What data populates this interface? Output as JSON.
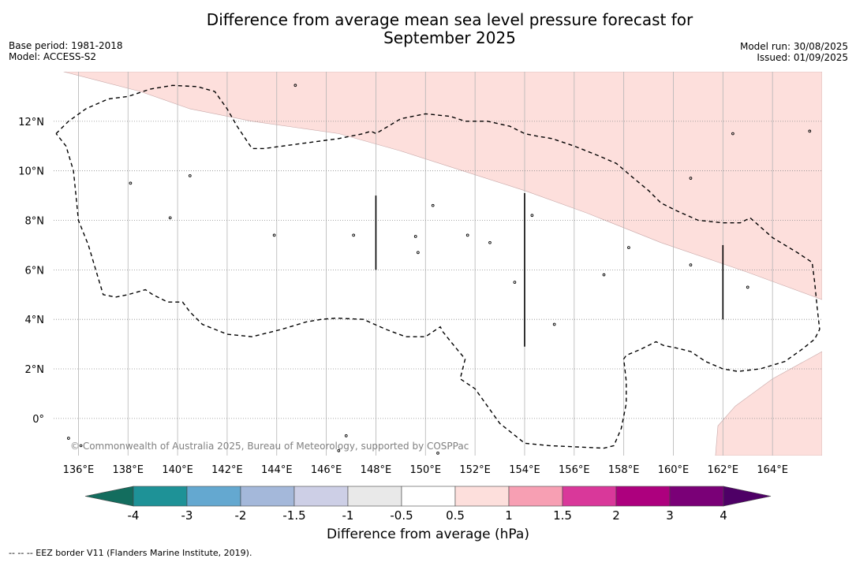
{
  "title": {
    "line1": "Difference from average mean sea level pressure forecast for",
    "line2": "September 2025"
  },
  "meta_left": {
    "base_period": "Base period: 1981-2018",
    "model": "Model: ACCESS-S2"
  },
  "meta_right": {
    "model_run": "Model run: 30/08/2025",
    "issued": "Issued: 01/09/2025"
  },
  "copyright": "© Commonwealth of Australia 2025, Bureau of Meteorology, supported by COSPPac",
  "map": {
    "lon_range": [
      135,
      166
    ],
    "lat_range": [
      -1.5,
      14
    ],
    "lon_ticks": [
      {
        "value": 136,
        "label": "136°E"
      },
      {
        "value": 138,
        "label": "138°E"
      },
      {
        "value": 140,
        "label": "140°E"
      },
      {
        "value": 142,
        "label": "142°E"
      },
      {
        "value": 144,
        "label": "144°E"
      },
      {
        "value": 146,
        "label": "146°E"
      },
      {
        "value": 148,
        "label": "148°E"
      },
      {
        "value": 150,
        "label": "150°E"
      },
      {
        "value": 152,
        "label": "152°E"
      },
      {
        "value": 154,
        "label": "154°E"
      },
      {
        "value": 156,
        "label": "156°E"
      },
      {
        "value": 158,
        "label": "158°E"
      },
      {
        "value": 160,
        "label": "160°E"
      },
      {
        "value": 162,
        "label": "162°E"
      },
      {
        "value": 164,
        "label": "164°E"
      }
    ],
    "lat_ticks": [
      {
        "value": 12,
        "label": "12°N"
      },
      {
        "value": 10,
        "label": "10°N"
      },
      {
        "value": 8,
        "label": "8°N"
      },
      {
        "value": 6,
        "label": "6°N"
      },
      {
        "value": 4,
        "label": "4°N"
      },
      {
        "value": 2,
        "label": "2°N"
      },
      {
        "value": 0,
        "label": "0°"
      }
    ],
    "positive_region_color": "#fddfdc",
    "positive_regions": [
      [
        [
          135.4,
          14
        ],
        [
          166,
          14
        ],
        [
          166,
          4.8
        ],
        [
          163,
          5.9
        ],
        [
          159.5,
          7.1
        ],
        [
          156.5,
          8.3
        ],
        [
          154,
          9.2
        ],
        [
          151.5,
          10
        ],
        [
          149,
          10.8
        ],
        [
          146.5,
          11.5
        ],
        [
          143,
          12
        ],
        [
          140.5,
          12.5
        ],
        [
          138.5,
          13.2
        ],
        [
          135.4,
          14
        ]
      ],
      [
        [
          166,
          2.7
        ],
        [
          164,
          1.6
        ],
        [
          162.5,
          0.5
        ],
        [
          161.8,
          -0.3
        ],
        [
          161.7,
          -1.5
        ],
        [
          166,
          -1.5
        ],
        [
          166,
          2.7
        ]
      ]
    ],
    "eez_borders": [
      [
        [
          135.1,
          11.5
        ],
        [
          135.6,
          12
        ],
        [
          136.3,
          12.5
        ],
        [
          137.2,
          12.9
        ],
        [
          138,
          13
        ],
        [
          138.9,
          13.3
        ],
        [
          139.8,
          13.45
        ],
        [
          140.8,
          13.4
        ],
        [
          141.5,
          13.2
        ],
        [
          142,
          12.5
        ],
        [
          142.4,
          11.8
        ],
        [
          142.8,
          11.2
        ],
        [
          143,
          10.9
        ],
        [
          143.5,
          10.9
        ],
        [
          145,
          11.1
        ],
        [
          146.5,
          11.3
        ],
        [
          147.5,
          11.5
        ],
        [
          147.8,
          11.6
        ],
        [
          148,
          11.5
        ],
        [
          148.5,
          11.8
        ],
        [
          149,
          12.1
        ],
        [
          150,
          12.3
        ],
        [
          151,
          12.2
        ],
        [
          151.6,
          12
        ],
        [
          152.5,
          12
        ],
        [
          153.4,
          11.8
        ],
        [
          154,
          11.5
        ],
        [
          154.5,
          11.4
        ],
        [
          155.1,
          11.3
        ],
        [
          156,
          11
        ],
        [
          157,
          10.6
        ],
        [
          157.7,
          10.3
        ],
        [
          158.4,
          9.7
        ],
        [
          159,
          9.2
        ],
        [
          159.5,
          8.7
        ],
        [
          160.1,
          8.4
        ],
        [
          161,
          8
        ],
        [
          162,
          7.9
        ],
        [
          162.7,
          7.9
        ],
        [
          163.1,
          8.1
        ],
        [
          164,
          7.3
        ],
        [
          165,
          6.7
        ],
        [
          165.6,
          6.3
        ],
        [
          165.7,
          5.5
        ],
        [
          165.8,
          4.5
        ],
        [
          165.9,
          3.6
        ],
        [
          165.7,
          3.2
        ],
        [
          165.2,
          2.8
        ],
        [
          164.5,
          2.3
        ],
        [
          163.5,
          2
        ],
        [
          162.6,
          1.9
        ],
        [
          162,
          2
        ],
        [
          161.3,
          2.3
        ],
        [
          160.7,
          2.7
        ],
        [
          160.1,
          2.85
        ],
        [
          159.6,
          2.95
        ],
        [
          159.3,
          3.1
        ],
        [
          158.7,
          2.8
        ],
        [
          158.1,
          2.55
        ],
        [
          158,
          2.4
        ],
        [
          158.1,
          1.5
        ],
        [
          158.1,
          0.6
        ],
        [
          157.9,
          -0.4
        ],
        [
          157.6,
          -1.1
        ],
        [
          157.2,
          -1.2
        ],
        [
          155,
          -1.1
        ],
        [
          154,
          -1
        ],
        [
          153.5,
          -0.6
        ],
        [
          153,
          -0.2
        ],
        [
          152.5,
          0.5
        ],
        [
          152,
          1.2
        ],
        [
          151.4,
          1.6
        ],
        [
          151.6,
          2.4
        ],
        [
          151.1,
          3
        ],
        [
          150.7,
          3.5
        ],
        [
          150.6,
          3.7
        ],
        [
          150,
          3.3
        ],
        [
          149.2,
          3.3
        ],
        [
          148.4,
          3.6
        ],
        [
          147.5,
          4.0
        ],
        [
          146.4,
          4.05
        ],
        [
          145.8,
          4.0
        ],
        [
          145.2,
          3.9
        ],
        [
          144.2,
          3.6
        ],
        [
          143,
          3.3
        ],
        [
          142,
          3.4
        ],
        [
          141,
          3.8
        ],
        [
          140.5,
          4.3
        ],
        [
          140.2,
          4.7
        ],
        [
          139.6,
          4.7
        ],
        [
          139,
          5
        ],
        [
          138.7,
          5.2
        ],
        [
          138,
          5
        ],
        [
          137.5,
          4.9
        ],
        [
          137,
          5
        ],
        [
          136.7,
          6
        ],
        [
          136.4,
          7
        ],
        [
          136,
          8
        ],
        [
          135.9,
          9
        ],
        [
          135.8,
          10
        ],
        [
          135.5,
          11
        ],
        [
          135.1,
          11.5
        ]
      ]
    ],
    "meridian_lines": [
      {
        "lon": 148,
        "lat_top": 9,
        "lat_bottom": 6
      },
      {
        "lon": 154,
        "lat_top": 9.1,
        "lat_bottom": 2.9
      },
      {
        "lon": 162,
        "lat_top": 7,
        "lat_bottom": 4
      }
    ],
    "islands": [
      {
        "lon": 144.75,
        "lat": 13.45
      },
      {
        "lon": 138.1,
        "lat": 9.5
      },
      {
        "lon": 140.5,
        "lat": 9.8
      },
      {
        "lon": 139.7,
        "lat": 8.1
      },
      {
        "lon": 143.9,
        "lat": 7.4
      },
      {
        "lon": 147.1,
        "lat": 7.4
      },
      {
        "lon": 149.6,
        "lat": 7.35
      },
      {
        "lon": 149.7,
        "lat": 6.7
      },
      {
        "lon": 150.3,
        "lat": 8.6
      },
      {
        "lon": 151.7,
        "lat": 7.4
      },
      {
        "lon": 152.6,
        "lat": 7.1
      },
      {
        "lon": 153.6,
        "lat": 5.5
      },
      {
        "lon": 154.3,
        "lat": 8.2
      },
      {
        "lon": 155.2,
        "lat": 3.8
      },
      {
        "lon": 157.2,
        "lat": 5.8
      },
      {
        "lon": 158.2,
        "lat": 6.9
      },
      {
        "lon": 160.7,
        "lat": 9.7
      },
      {
        "lon": 160.7,
        "lat": 6.2
      },
      {
        "lon": 163,
        "lat": 5.3
      },
      {
        "lon": 162.4,
        "lat": 11.5
      },
      {
        "lon": 165.5,
        "lat": 11.6
      },
      {
        "lon": 135.6,
        "lat": -0.8
      },
      {
        "lon": 136.1,
        "lat": -1.1
      },
      {
        "lon": 146.8,
        "lat": -0.7
      },
      {
        "lon": 146.5,
        "lat": -1.3
      },
      {
        "lon": 150.5,
        "lat": -1.4
      }
    ]
  },
  "colorbar": {
    "title": "Difference from average (hPa)",
    "low_extend_color": "#136d5e",
    "high_extend_color": "#4e0066",
    "bins": [
      {
        "from": -4,
        "to": -3,
        "color": "#1e9297"
      },
      {
        "from": -3,
        "to": -2,
        "color": "#64a8d0"
      },
      {
        "from": -2,
        "to": -1.5,
        "color": "#a4b8da"
      },
      {
        "from": -1.5,
        "to": -1,
        "color": "#cdcfe6"
      },
      {
        "from": -1,
        "to": -0.5,
        "color": "#e9e9e9"
      },
      {
        "from": -0.5,
        "to": 0.5,
        "color": "#ffffff"
      },
      {
        "from": 0.5,
        "to": 1,
        "color": "#fddfdc"
      },
      {
        "from": 1,
        "to": 1.5,
        "color": "#f79fb3"
      },
      {
        "from": 1.5,
        "to": 2,
        "color": "#d9389a"
      },
      {
        "from": 2,
        "to": 3,
        "color": "#ad007e"
      },
      {
        "from": 3,
        "to": 4,
        "color": "#7a0077"
      }
    ],
    "tick_labels": [
      "-4",
      "-3",
      "-2",
      "-1.5",
      "-1",
      "-0.5",
      "0.5",
      "1",
      "1.5",
      "2",
      "3",
      "4"
    ]
  },
  "footer": "--  --  -- EEZ border V11 (Flanders Marine Institute, 2019)."
}
